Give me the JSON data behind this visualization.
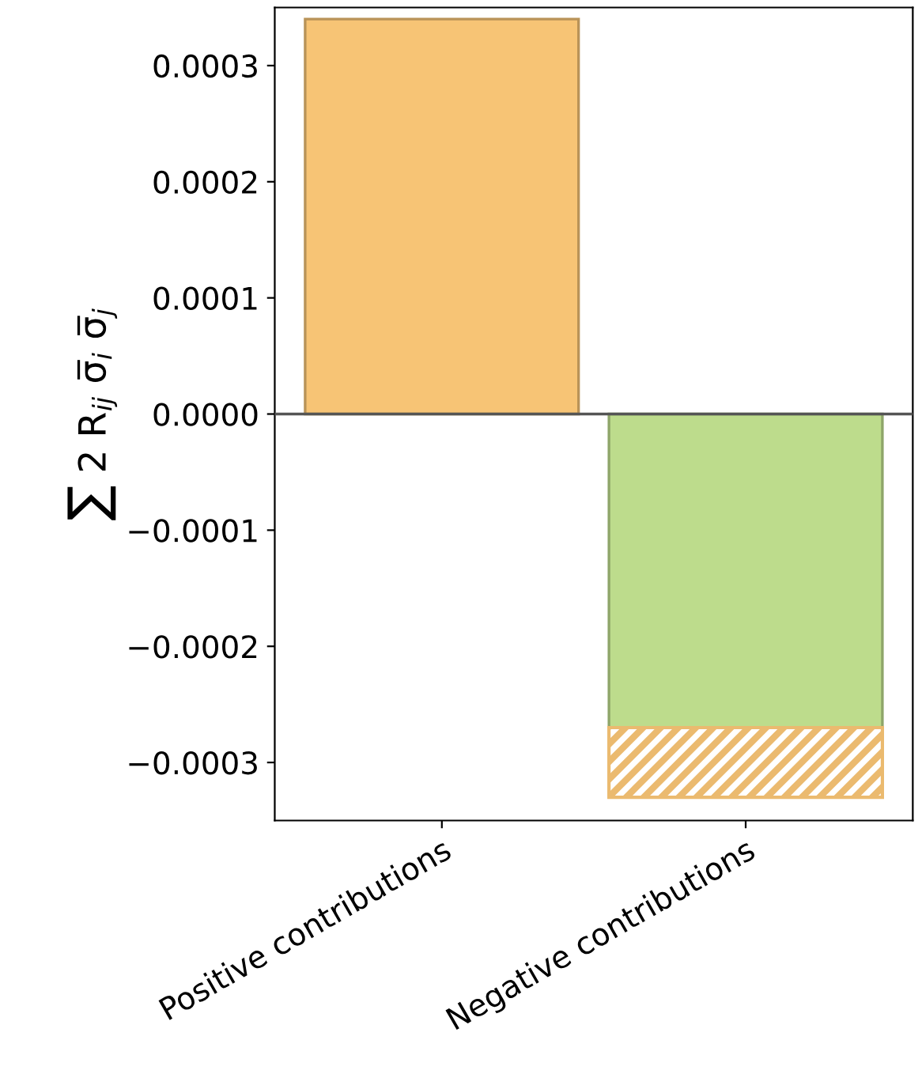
{
  "chart_data": {
    "type": "bar",
    "stacked": true,
    "ylabel": "∑ 2 R$_{ij}$ σ̅$_{i}$ σ̅$_{j}$",
    "categories": [
      "Positive contributions",
      "Negative contributions"
    ],
    "series": [
      {
        "color": "#f7c475",
        "values": [
          0.00034,
          null
        ]
      },
      {
        "color": "#bddc8c",
        "values": [
          null,
          -0.00027
        ]
      },
      {
        "color": "#f7c475",
        "values": [
          null,
          -6e-05
        ]
      }
    ],
    "ylim": [
      -0.00035,
      0.00035
    ],
    "yticks": [
      {
        "value": -0.0003,
        "label": "−0.0003"
      },
      {
        "value": -0.0002,
        "label": "−0.0002"
      },
      {
        "value": -0.0001,
        "label": "−0.0001"
      },
      {
        "value": 0,
        "label": "0.0000"
      },
      {
        "value": 0.0001,
        "label": "0.0001"
      },
      {
        "value": 0.0002,
        "label": "0.0002"
      },
      {
        "value": 0.0003,
        "label": "0.0003"
      }
    ],
    "ref_lines": [
      {
        "axis": "y",
        "value": 0,
        "color": "#555555"
      }
    ],
    "grid": false,
    "legend": false
  }
}
